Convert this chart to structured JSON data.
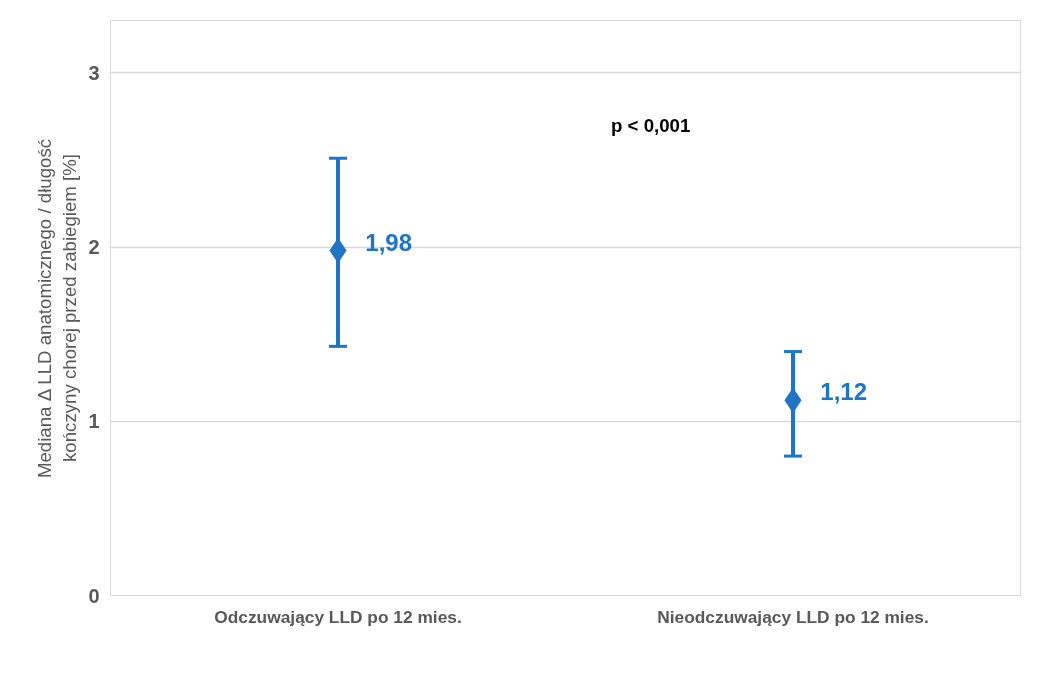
{
  "chart_data": {
    "type": "scatter",
    "categories": [
      "Odczuwający LLD po 12 mies.",
      "Nieodczuwający LLD po 12 mies."
    ],
    "ylabel": "Mediana Δ LLD anatomicznego / długość\nkończyny chorej przed zabiegiem [%]",
    "series": [
      {
        "color": "#1f74c4",
        "values": [
          1.98,
          1.12
        ],
        "errors": [
          [
            1.43,
            2.51
          ],
          [
            0.8,
            1.4
          ]
        ],
        "value_labels": [
          "1,98",
          "1,12"
        ]
      }
    ],
    "marker": "diamond",
    "ylim": [
      0,
      3.3
    ],
    "yticks": [
      0,
      1,
      2,
      3
    ],
    "grid": "y",
    "annotations": [
      "p < 0,001"
    ]
  }
}
